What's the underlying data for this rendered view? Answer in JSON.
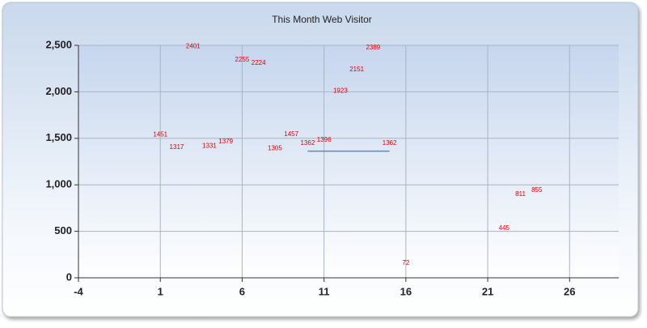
{
  "chart_data": {
    "type": "scatter",
    "title": "This Month Web Visitor",
    "x": [
      1,
      2,
      3,
      4,
      5,
      6,
      7,
      8,
      9,
      10,
      11,
      12,
      13,
      14,
      15,
      16,
      22,
      23,
      24
    ],
    "values": [
      1451,
      1317,
      2401,
      1331,
      1379,
      2255,
      2224,
      1305,
      1457,
      1362,
      1396,
      1923,
      2151,
      2389,
      1362,
      72,
      445,
      811,
      855
    ],
    "label_color": "#e00000",
    "line": {
      "x": [
        10,
        15
      ],
      "values": [
        1362,
        1362
      ],
      "color": "#6a88a8"
    },
    "xlim": [
      -4,
      29
    ],
    "xticks": [
      -4,
      1,
      6,
      11,
      16,
      21,
      26
    ],
    "ylim": [
      0,
      2500
    ],
    "yticks": [
      0,
      500,
      {
        "value": 1000,
        "label": "1,000"
      },
      {
        "value": 1500,
        "label": "1,500"
      },
      {
        "value": 2000,
        "label": "2,000"
      },
      {
        "value": 2500,
        "label": "2,500"
      }
    ],
    "grid": true
  }
}
